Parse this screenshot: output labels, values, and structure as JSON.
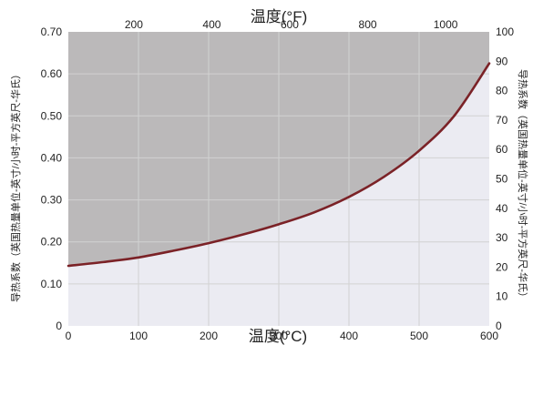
{
  "chart_data": {
    "type": "line",
    "title": "",
    "x_axis_bottom": {
      "label": "温度(°C)",
      "range": [
        0,
        600
      ],
      "ticks": [
        0,
        100,
        200,
        300,
        400,
        500,
        600
      ]
    },
    "x_axis_top": {
      "label": "温度(°F)",
      "range": [
        32,
        1112
      ],
      "ticks": [
        200,
        400,
        600,
        800,
        1000
      ]
    },
    "y_axis_left": {
      "label": "导热系数（英国热量单位-英寸/小时-平方英尺-华氏）",
      "range": [
        0,
        0.7
      ],
      "ticks": [
        "0",
        "0.10",
        "0.20",
        "0.30",
        "0.40",
        "0.50",
        "0.60",
        "0.70"
      ]
    },
    "y_axis_right": {
      "label": "导热系数（英国热量单位-英寸/小时-平方英尺-华氏）",
      "range": [
        0,
        100
      ],
      "ticks": [
        0,
        10,
        20,
        30,
        40,
        50,
        60,
        70,
        80,
        90,
        100
      ]
    },
    "series": [
      {
        "name": "",
        "x": [
          0,
          50,
          100,
          150,
          200,
          250,
          300,
          350,
          400,
          450,
          500,
          550,
          600
        ],
        "y": [
          0.143,
          0.152,
          0.163,
          0.179,
          0.197,
          0.218,
          0.242,
          0.27,
          0.307,
          0.355,
          0.417,
          0.5,
          0.625
        ]
      }
    ],
    "grid": true,
    "legend": "none",
    "colors": {
      "area_above": "#bbb9ba",
      "area_below": "#ebebf2",
      "line": "#7b2227",
      "grid": "#d2d2d2"
    }
  }
}
